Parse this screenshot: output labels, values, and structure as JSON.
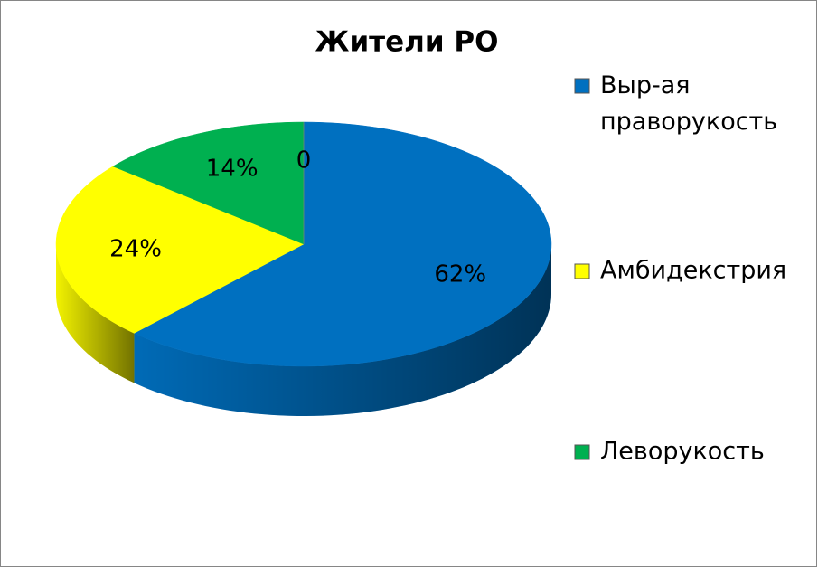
{
  "chart_data": {
    "type": "pie3d",
    "title": "Жители РО",
    "categories": [
      "Выр-ая праворукость",
      "Амбидекстрия",
      "Леворукость",
      null
    ],
    "values": [
      62,
      24,
      14,
      0
    ],
    "value_labels": [
      "62%",
      "24%",
      "14%",
      "0"
    ],
    "colors": [
      "#0070c0",
      "#ffff00",
      "#00b050",
      "#7f7f7f"
    ],
    "legend": "right"
  }
}
